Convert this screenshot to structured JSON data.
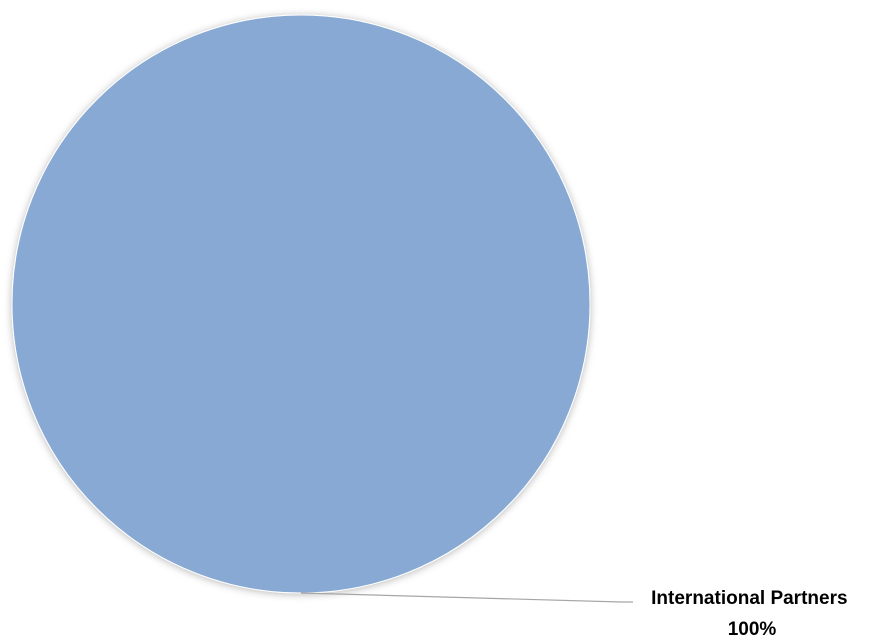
{
  "chart_data": {
    "type": "pie",
    "title": "",
    "slices": [
      {
        "label": "International Partners",
        "value": 100,
        "percent_label": "100%",
        "color": "#88A9D4"
      }
    ],
    "legend": "none",
    "data_labels": "outside-with-leader-line"
  }
}
